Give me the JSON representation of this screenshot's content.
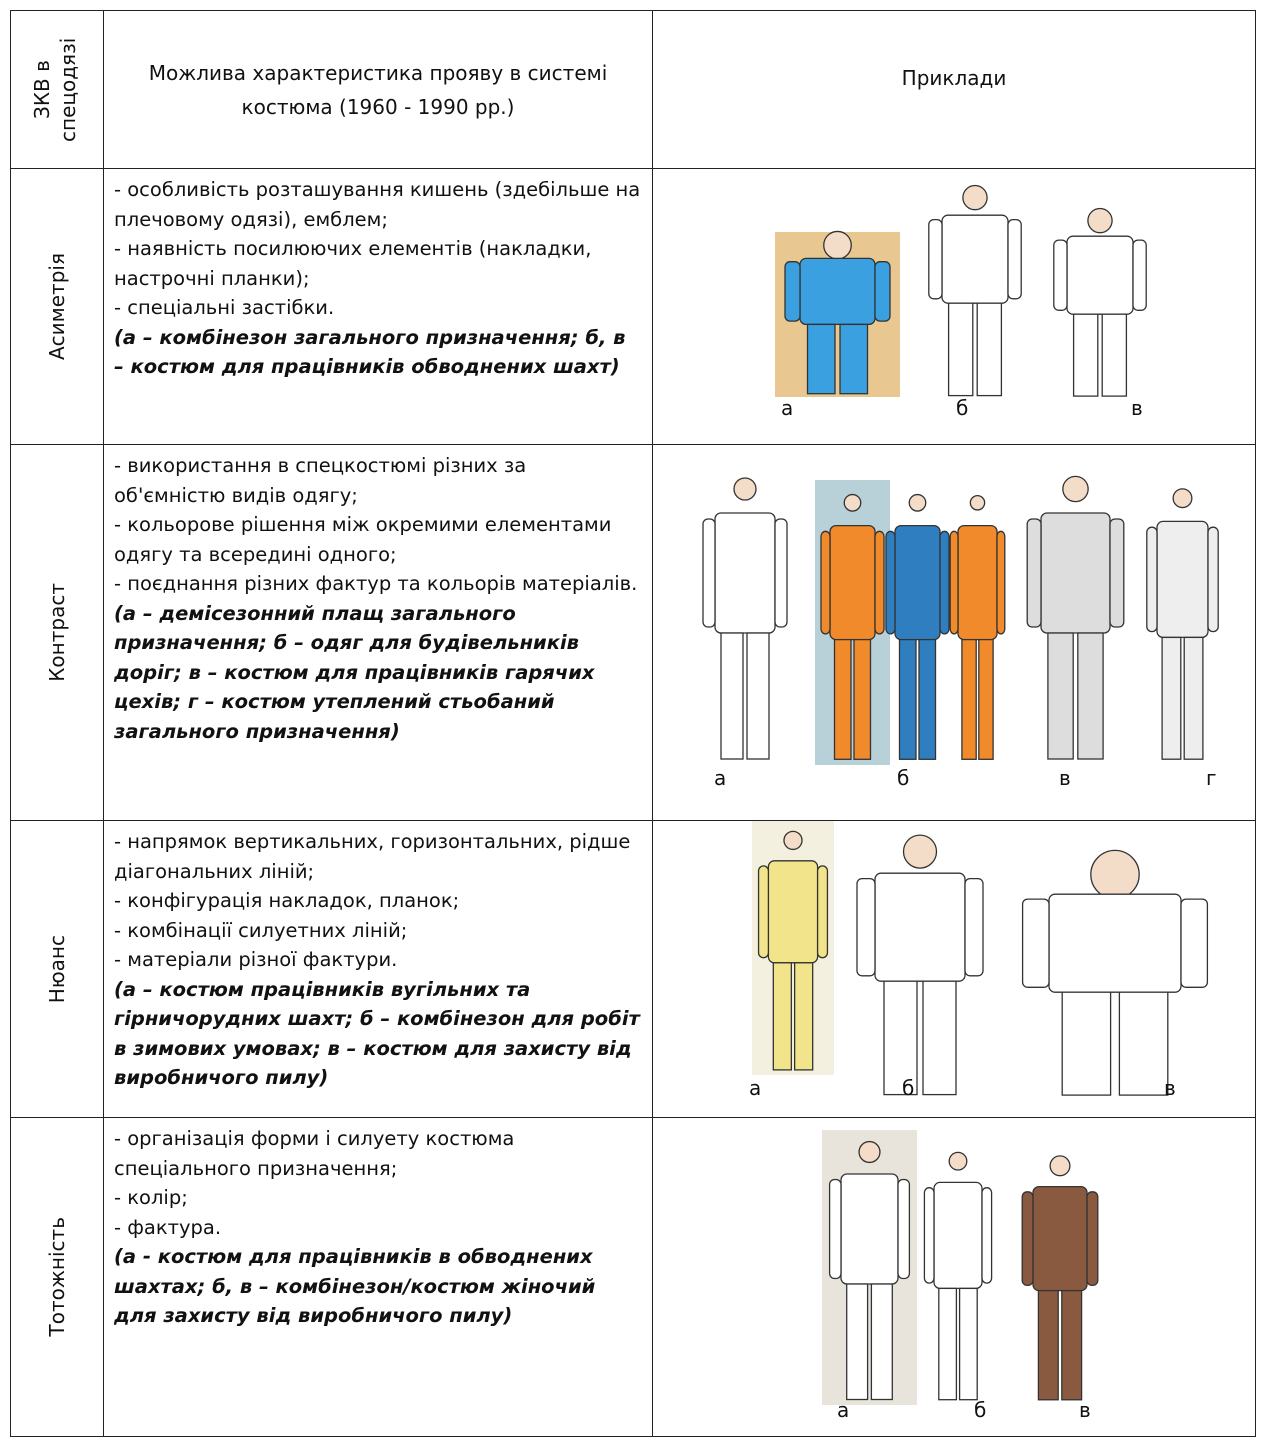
{
  "header": {
    "col1": "ЗКВ в спецодязі",
    "col2": "Можлива характеристика прояву в системі костюма (1960 - 1990 рр.)",
    "col3": "Приклади"
  },
  "rows": [
    {
      "label": "Асиметрія",
      "lines": [
        "- особливість розташування кишень (здебільше на плечовому одязі), емблем;",
        "- наявність посилюючих елементів (накладки, настрочні планки);",
        "- спеціальні застібки."
      ],
      "note": "(а – комбінезон загального призначення; б, в – костюм для працівників обводнених шахт)",
      "image_labels": [
        "а",
        "б",
        "в"
      ]
    },
    {
      "label": "Контраст",
      "lines": [
        "- використання в спецкостюмі різних за об'ємністю видів одягу;",
        "- кольорове рішення між окремими елементами одягу та всередині одного;",
        "- поєднання різних фактур та кольорів матеріалів."
      ],
      "note": "(а – демісезонний плащ загального призначення; б – одяг для будівельників доріг; в – костюм для працівників гарячих цехів; г – костюм утеплений стьобаний загального призначення)",
      "image_labels": [
        "а",
        "б",
        "в",
        "г"
      ]
    },
    {
      "label": "Нюанс",
      "lines": [
        "- напрямок вертикальних, горизонтальних, рідше діагональних ліній;",
        "- конфігурація накладок, планок;",
        "- комбінації силуетних ліній;",
        "- матеріали різної фактури."
      ],
      "note": "(а – костюм працівників вугільних та гірничорудних шахт; б – комбінезон для робіт в зимових умовах; в – костюм для захисту від виробничого пилу)",
      "image_labels": [
        "а",
        "б",
        "в"
      ]
    },
    {
      "label": "Тотожність",
      "lines": [
        "- організація форми і силуету костюма спеціального призначення;",
        "- колір;",
        "- фактура."
      ],
      "note": "(а - костюм для працівників в обводнених шахтах; б, в – комбінезон/костюм жіночий для захисту від виробничого пилу)",
      "image_labels": [
        "а",
        "б",
        "в"
      ]
    }
  ]
}
